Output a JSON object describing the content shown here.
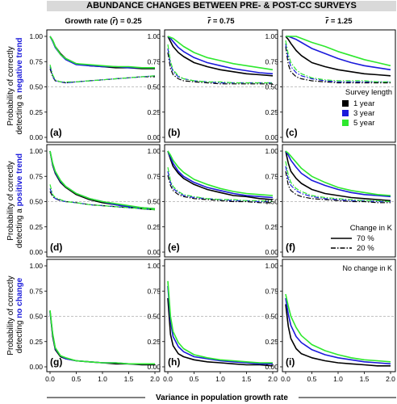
{
  "figure": {
    "banner": "ABUNDANCE CHANGES BETWEEN PRE- & POST-CC SURVEYS",
    "column_titles": [
      "Growth rate (",
      ") = 0.25",
      " = 0.75",
      " = 1.25"
    ],
    "r_symbol": "r",
    "row_ylabels": [
      {
        "line1": "Probability of correctly",
        "line2_pre": "detecting a ",
        "line2_colored": "negative trend"
      },
      {
        "line1": "Probability of correctly",
        "line2_pre": "detecting a ",
        "line2_colored": "positive trend"
      },
      {
        "line1": "Probability of correctly",
        "line2_pre": "detecting ",
        "line2_colored": "no change"
      }
    ],
    "xlabel": "Variance in population growth rate",
    "legend_survey": {
      "title": "Survey length",
      "items": [
        "1 year",
        "3 year",
        "5 year"
      ]
    },
    "legend_k": {
      "title": "Change in K",
      "items": [
        "70 %",
        "20 %"
      ]
    },
    "no_change_note": "No change in K",
    "panel_letters": [
      "(a)",
      "(b)",
      "(c)",
      "(d)",
      "(e)",
      "(f)",
      "(g)",
      "(h)",
      "(i)"
    ],
    "colors": {
      "1 year": "#000000",
      "3 year": "#1a1adb",
      "5 year": "#2ee82e",
      "highlight": "#1a1adb",
      "reference": "#b0b0b0",
      "banner": "#d9d9d9"
    }
  },
  "chart_data": {
    "type": "line",
    "xlim": [
      0.0,
      2.0
    ],
    "ylim": [
      0.0,
      1.0
    ],
    "x_ticks": [
      "0.0",
      "0.5",
      "1.0",
      "1.5",
      "2.0"
    ],
    "y_ticks": [
      "0.00",
      "0.25",
      "0.50",
      "0.75",
      "1.00"
    ],
    "reference_line_y": 0.5,
    "x": [
      0.0,
      0.05,
      0.1,
      0.2,
      0.3,
      0.5,
      0.75,
      1.0,
      1.25,
      1.5,
      1.75,
      2.0
    ],
    "panels": [
      {
        "label": "(a)",
        "series": [
          {
            "name": "1 year",
            "k": "70 %",
            "values": [
              1.0,
              0.96,
              0.9,
              0.83,
              0.78,
              0.73,
              0.71,
              0.7,
              0.69,
              0.69,
              0.68,
              0.68
            ]
          },
          {
            "name": "3 year",
            "k": "70 %",
            "values": [
              1.0,
              0.95,
              0.89,
              0.82,
              0.77,
              0.72,
              0.71,
              0.7,
              0.7,
              0.69,
              0.69,
              0.69
            ]
          },
          {
            "name": "5 year",
            "k": "70 %",
            "values": [
              1.0,
              0.96,
              0.9,
              0.82,
              0.78,
              0.73,
              0.72,
              0.71,
              0.7,
              0.7,
              0.69,
              0.69
            ]
          },
          {
            "name": "1 year",
            "k": "20 %",
            "values": [
              0.68,
              0.6,
              0.56,
              0.55,
              0.54,
              0.55,
              0.56,
              0.57,
              0.58,
              0.59,
              0.6,
              0.6
            ]
          },
          {
            "name": "3 year",
            "k": "20 %",
            "values": [
              0.7,
              0.61,
              0.56,
              0.55,
              0.54,
              0.55,
              0.56,
              0.57,
              0.58,
              0.59,
              0.6,
              0.61
            ]
          },
          {
            "name": "5 year",
            "k": "20 %",
            "values": [
              0.72,
              0.62,
              0.57,
              0.55,
              0.55,
              0.55,
              0.56,
              0.57,
              0.58,
              0.59,
              0.6,
              0.61
            ]
          }
        ]
      },
      {
        "label": "(b)",
        "series": [
          {
            "name": "1 year",
            "k": "70 %",
            "values": [
              1.0,
              0.95,
              0.9,
              0.84,
              0.8,
              0.74,
              0.7,
              0.67,
              0.65,
              0.63,
              0.62,
              0.61
            ]
          },
          {
            "name": "3 year",
            "k": "70 %",
            "values": [
              1.0,
              0.98,
              0.95,
              0.89,
              0.85,
              0.79,
              0.74,
              0.71,
              0.68,
              0.66,
              0.64,
              0.63
            ]
          },
          {
            "name": "5 year",
            "k": "70 %",
            "values": [
              1.0,
              0.99,
              0.98,
              0.94,
              0.9,
              0.84,
              0.79,
              0.76,
              0.73,
              0.71,
              0.69,
              0.67
            ]
          },
          {
            "name": "1 year",
            "k": "20 %",
            "values": [
              0.84,
              0.68,
              0.62,
              0.58,
              0.56,
              0.55,
              0.54,
              0.53,
              0.53,
              0.53,
              0.53,
              0.53
            ]
          },
          {
            "name": "3 year",
            "k": "20 %",
            "values": [
              0.88,
              0.72,
              0.65,
              0.6,
              0.58,
              0.56,
              0.55,
              0.54,
              0.54,
              0.54,
              0.54,
              0.54
            ]
          },
          {
            "name": "5 year",
            "k": "20 %",
            "values": [
              0.92,
              0.75,
              0.67,
              0.61,
              0.58,
              0.56,
              0.55,
              0.55,
              0.54,
              0.54,
              0.54,
              0.54
            ]
          }
        ]
      },
      {
        "label": "(c)",
        "series": [
          {
            "name": "1 year",
            "k": "70 %",
            "values": [
              1.0,
              0.97,
              0.93,
              0.86,
              0.81,
              0.74,
              0.7,
              0.67,
              0.65,
              0.63,
              0.62,
              0.61
            ]
          },
          {
            "name": "3 year",
            "k": "70 %",
            "values": [
              1.0,
              1.0,
              0.99,
              0.97,
              0.94,
              0.88,
              0.83,
              0.78,
              0.74,
              0.71,
              0.69,
              0.67
            ]
          },
          {
            "name": "5 year",
            "k": "70 %",
            "values": [
              1.0,
              1.0,
              1.0,
              1.0,
              0.98,
              0.94,
              0.9,
              0.85,
              0.81,
              0.77,
              0.74,
              0.71
            ]
          },
          {
            "name": "1 year",
            "k": "20 %",
            "values": [
              0.9,
              0.72,
              0.65,
              0.6,
              0.58,
              0.56,
              0.55,
              0.54,
              0.54,
              0.54,
              0.54,
              0.54
            ]
          },
          {
            "name": "3 year",
            "k": "20 %",
            "values": [
              0.93,
              0.78,
              0.7,
              0.64,
              0.61,
              0.58,
              0.56,
              0.55,
              0.55,
              0.55,
              0.55,
              0.55
            ]
          },
          {
            "name": "5 year",
            "k": "20 %",
            "values": [
              0.96,
              0.82,
              0.74,
              0.67,
              0.63,
              0.59,
              0.57,
              0.56,
              0.56,
              0.56,
              0.55,
              0.55
            ]
          }
        ]
      },
      {
        "label": "(d)",
        "series": [
          {
            "name": "1 year",
            "k": "70 %",
            "values": [
              1.0,
              0.86,
              0.78,
              0.69,
              0.64,
              0.57,
              0.52,
              0.49,
              0.47,
              0.45,
              0.43,
              0.42
            ]
          },
          {
            "name": "3 year",
            "k": "70 %",
            "values": [
              1.0,
              0.87,
              0.79,
              0.7,
              0.65,
              0.58,
              0.53,
              0.5,
              0.47,
              0.45,
              0.44,
              0.43
            ]
          },
          {
            "name": "5 year",
            "k": "70 %",
            "values": [
              1.0,
              0.88,
              0.8,
              0.71,
              0.65,
              0.58,
              0.53,
              0.5,
              0.48,
              0.46,
              0.44,
              0.43
            ]
          },
          {
            "name": "1 year",
            "k": "20 %",
            "values": [
              0.6,
              0.55,
              0.53,
              0.51,
              0.5,
              0.49,
              0.47,
              0.46,
              0.45,
              0.44,
              0.43,
              0.42
            ]
          },
          {
            "name": "3 year",
            "k": "20 %",
            "values": [
              0.63,
              0.56,
              0.53,
              0.51,
              0.5,
              0.49,
              0.47,
              0.46,
              0.45,
              0.44,
              0.43,
              0.42
            ]
          },
          {
            "name": "5 year",
            "k": "20 %",
            "values": [
              0.67,
              0.57,
              0.54,
              0.52,
              0.5,
              0.49,
              0.47,
              0.46,
              0.45,
              0.44,
              0.43,
              0.42
            ]
          }
        ]
      },
      {
        "label": "(e)",
        "series": [
          {
            "name": "1 year",
            "k": "70 %",
            "values": [
              1.0,
              0.92,
              0.85,
              0.78,
              0.73,
              0.67,
              0.62,
              0.59,
              0.56,
              0.55,
              0.53,
              0.52
            ]
          },
          {
            "name": "3 year",
            "k": "70 %",
            "values": [
              1.0,
              0.94,
              0.88,
              0.8,
              0.75,
              0.69,
              0.64,
              0.61,
              0.58,
              0.56,
              0.55,
              0.54
            ]
          },
          {
            "name": "5 year",
            "k": "70 %",
            "values": [
              1.0,
              0.96,
              0.91,
              0.84,
              0.79,
              0.72,
              0.67,
              0.63,
              0.6,
              0.58,
              0.57,
              0.56
            ]
          },
          {
            "name": "1 year",
            "k": "20 %",
            "values": [
              0.76,
              0.66,
              0.61,
              0.57,
              0.55,
              0.53,
              0.52,
              0.51,
              0.5,
              0.5,
              0.49,
              0.49
            ]
          },
          {
            "name": "3 year",
            "k": "20 %",
            "values": [
              0.8,
              0.69,
              0.63,
              0.59,
              0.56,
              0.54,
              0.53,
              0.52,
              0.51,
              0.51,
              0.5,
              0.5
            ]
          },
          {
            "name": "5 year",
            "k": "20 %",
            "values": [
              0.84,
              0.71,
              0.65,
              0.6,
              0.57,
              0.55,
              0.53,
              0.52,
              0.52,
              0.51,
              0.51,
              0.5
            ]
          }
        ]
      },
      {
        "label": "(f)",
        "series": [
          {
            "name": "1 year",
            "k": "70 %",
            "values": [
              1.0,
              0.88,
              0.8,
              0.73,
              0.68,
              0.62,
              0.58,
              0.56,
              0.54,
              0.53,
              0.52,
              0.51
            ]
          },
          {
            "name": "3 year",
            "k": "70 %",
            "values": [
              1.0,
              0.96,
              0.91,
              0.84,
              0.78,
              0.71,
              0.66,
              0.62,
              0.59,
              0.57,
              0.56,
              0.55
            ]
          },
          {
            "name": "5 year",
            "k": "70 %",
            "values": [
              1.0,
              0.98,
              0.95,
              0.89,
              0.83,
              0.75,
              0.69,
              0.64,
              0.61,
              0.59,
              0.57,
              0.56
            ]
          },
          {
            "name": "1 year",
            "k": "20 %",
            "values": [
              0.8,
              0.66,
              0.61,
              0.57,
              0.55,
              0.53,
              0.52,
              0.51,
              0.5,
              0.5,
              0.49,
              0.49
            ]
          },
          {
            "name": "3 year",
            "k": "20 %",
            "values": [
              0.85,
              0.72,
              0.66,
              0.61,
              0.58,
              0.55,
              0.53,
              0.52,
              0.51,
              0.51,
              0.5,
              0.5
            ]
          },
          {
            "name": "5 year",
            "k": "20 %",
            "values": [
              0.9,
              0.76,
              0.69,
              0.63,
              0.6,
              0.56,
              0.54,
              0.53,
              0.52,
              0.51,
              0.51,
              0.5
            ]
          }
        ]
      },
      {
        "label": "(g)",
        "series": [
          {
            "name": "1 year",
            "k": "0 %",
            "values": [
              0.55,
              0.3,
              0.17,
              0.1,
              0.08,
              0.06,
              0.05,
              0.04,
              0.03,
              0.03,
              0.02,
              0.02
            ]
          },
          {
            "name": "3 year",
            "k": "0 %",
            "values": [
              0.55,
              0.32,
              0.18,
              0.11,
              0.08,
              0.06,
              0.05,
              0.04,
              0.04,
              0.03,
              0.03,
              0.03
            ]
          },
          {
            "name": "5 year",
            "k": "0 %",
            "values": [
              0.56,
              0.33,
              0.19,
              0.11,
              0.09,
              0.06,
              0.05,
              0.04,
              0.04,
              0.03,
              0.03,
              0.03
            ]
          }
        ]
      },
      {
        "label": "(h)",
        "series": [
          {
            "name": "1 year",
            "k": "0 %",
            "values": [
              0.68,
              0.32,
              0.21,
              0.13,
              0.1,
              0.07,
              0.05,
              0.04,
              0.03,
              0.02,
              0.02,
              0.01
            ]
          },
          {
            "name": "3 year",
            "k": "0 %",
            "values": [
              0.8,
              0.45,
              0.3,
              0.2,
              0.15,
              0.1,
              0.08,
              0.06,
              0.05,
              0.04,
              0.03,
              0.03
            ]
          },
          {
            "name": "5 year",
            "k": "0 %",
            "values": [
              0.85,
              0.5,
              0.35,
              0.24,
              0.18,
              0.12,
              0.09,
              0.07,
              0.06,
              0.05,
              0.04,
              0.04
            ]
          }
        ]
      },
      {
        "label": "(i)",
        "series": [
          {
            "name": "1 year",
            "k": "0 %",
            "values": [
              0.62,
              0.4,
              0.28,
              0.18,
              0.13,
              0.09,
              0.06,
              0.04,
              0.03,
              0.02,
              0.01,
              0.01
            ]
          },
          {
            "name": "3 year",
            "k": "0 %",
            "values": [
              0.68,
              0.52,
              0.41,
              0.3,
              0.24,
              0.17,
              0.12,
              0.09,
              0.07,
              0.05,
              0.04,
              0.03
            ]
          },
          {
            "name": "5 year",
            "k": "0 %",
            "values": [
              0.72,
              0.6,
              0.5,
              0.39,
              0.31,
              0.22,
              0.16,
              0.12,
              0.09,
              0.07,
              0.06,
              0.05
            ]
          }
        ]
      }
    ]
  }
}
